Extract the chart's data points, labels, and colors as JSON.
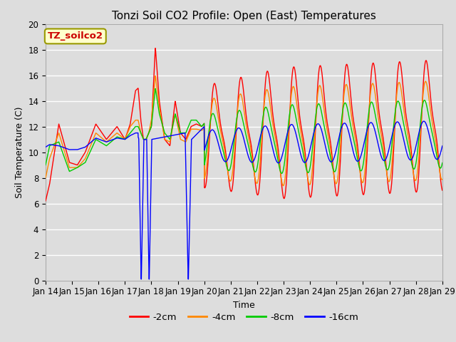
{
  "title": "Tonzi Soil CO2 Profile: Open (East) Temperatures",
  "xlabel": "Time",
  "ylabel": "Soil Temperature (C)",
  "ylim": [
    0,
    20
  ],
  "xlim": [
    0,
    15
  ],
  "legend_label": "TZ_soilco2",
  "series_labels": [
    "-2cm",
    "-4cm",
    "-8cm",
    "-16cm"
  ],
  "series_colors": [
    "#ff0000",
    "#ff8800",
    "#00cc00",
    "#0000ff"
  ],
  "xtick_labels": [
    "Jan 14",
    "Jan 15",
    "Jan 16",
    "Jan 17",
    "Jan 18",
    "Jan 19",
    "Jan 20",
    "Jan 21",
    "Jan 22",
    "Jan 23",
    "Jan 24",
    "Jan 25",
    "Jan 26",
    "Jan 27",
    "Jan 28",
    "Jan 29"
  ],
  "background_color": "#dddddd",
  "plot_bg_color": "#dddddd",
  "grid_color": "#ffffff",
  "legend_box_color": "#ffffcc",
  "legend_text_color": "#cc0000",
  "title_fontsize": 11,
  "axis_fontsize": 9,
  "tick_fontsize": 8.5
}
